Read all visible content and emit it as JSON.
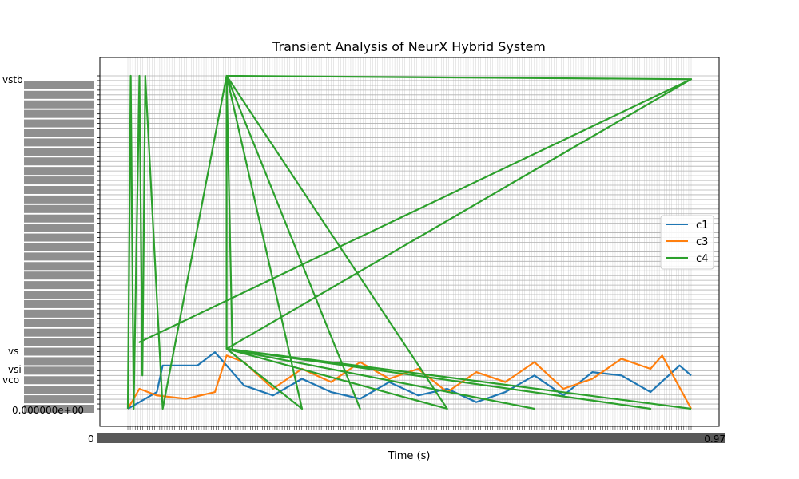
{
  "chart_data": {
    "type": "line",
    "title": "Transient Analysis of NeurX Hybrid System",
    "xlabel": "Time (s)",
    "ylabel": "",
    "grid": true,
    "legend_position": "center-right",
    "colors": {
      "c1": "#1f77b4",
      "c3": "#ff7f0e",
      "c4": "#2ca02c",
      "grid": "#b0b0b0"
    },
    "x_tick_labels_visible": {
      "first": "0",
      "last": "0.97"
    },
    "y_tick_labels_visible": [
      "vstb",
      "vsi",
      "vs",
      "vco",
      "0.000000e+00"
    ],
    "series": [
      {
        "name": "c1",
        "x": [
          0.0,
          0.02,
          0.05,
          0.06,
          0.08,
          0.12,
          0.15,
          0.2,
          0.25,
          0.3,
          0.35,
          0.4,
          0.45,
          0.5,
          0.55,
          0.6,
          0.65,
          0.7,
          0.75,
          0.8,
          0.85,
          0.9,
          0.95,
          0.97
        ],
        "y": [
          0.0,
          0.02,
          0.05,
          0.13,
          0.13,
          0.13,
          0.17,
          0.07,
          0.04,
          0.09,
          0.05,
          0.03,
          0.08,
          0.04,
          0.06,
          0.02,
          0.05,
          0.1,
          0.04,
          0.11,
          0.1,
          0.05,
          0.13,
          0.1
        ]
      },
      {
        "name": "c3",
        "x": [
          0.0,
          0.02,
          0.05,
          0.1,
          0.15,
          0.17,
          0.2,
          0.25,
          0.3,
          0.35,
          0.4,
          0.45,
          0.5,
          0.55,
          0.6,
          0.65,
          0.7,
          0.75,
          0.8,
          0.85,
          0.9,
          0.92,
          0.97
        ],
        "y": [
          0.0,
          0.06,
          0.04,
          0.03,
          0.05,
          0.16,
          0.14,
          0.06,
          0.12,
          0.08,
          0.14,
          0.09,
          0.12,
          0.05,
          0.11,
          0.08,
          0.14,
          0.06,
          0.09,
          0.15,
          0.12,
          0.16,
          0.0
        ]
      },
      {
        "name": "c4",
        "x": [
          0.0,
          0.005,
          0.01,
          0.02,
          0.025,
          0.03,
          0.06,
          0.17,
          0.18,
          0.17,
          0.97,
          0.17,
          0.4,
          0.17,
          0.55,
          0.17,
          0.17,
          0.3,
          0.17,
          0.7,
          0.17,
          0.97,
          0.02,
          0.97,
          0.17,
          0.9,
          0.17,
          0.97
        ],
        "y": [
          0.0,
          1.0,
          0.0,
          1.0,
          0.1,
          1.0,
          0.0,
          1.0,
          0.18,
          1.0,
          0.99,
          1.0,
          0.0,
          1.0,
          0.0,
          0.18,
          1.0,
          0.0,
          0.18,
          0.0,
          0.18,
          0.99,
          0.2,
          0.99,
          0.18,
          0.0,
          0.18,
          0.0
        ]
      }
    ]
  }
}
